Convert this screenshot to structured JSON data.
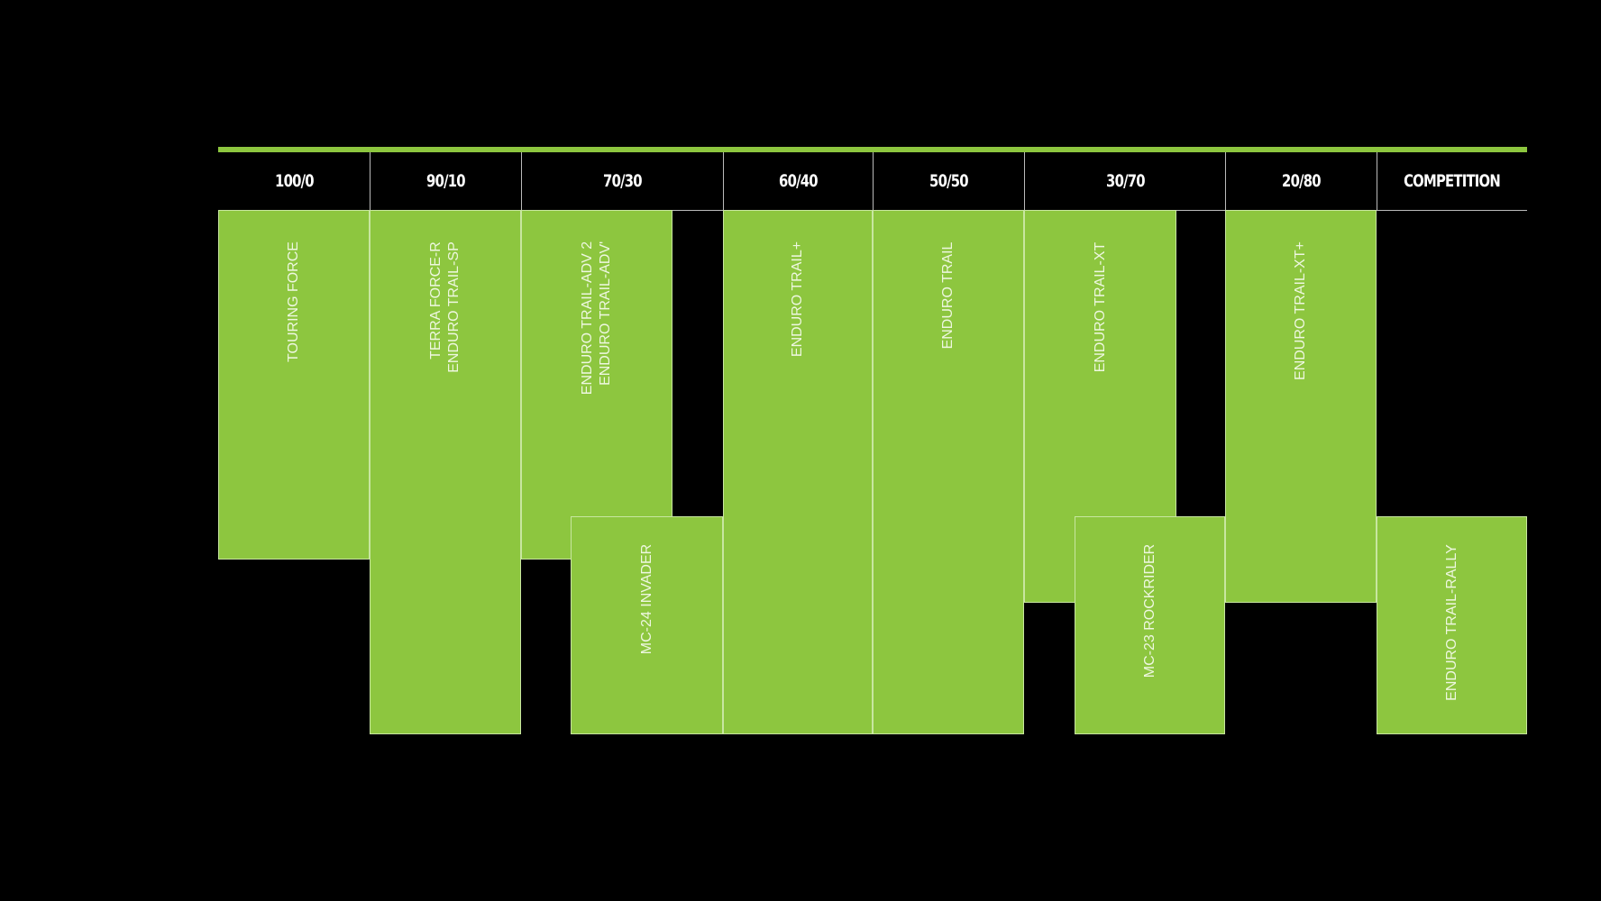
{
  "colors": {
    "background": "#000000",
    "accent_green": "#8dc63f",
    "text": "#ffffff"
  },
  "columns": [
    "100/0",
    "90/10",
    "70/30",
    "60/40",
    "50/50",
    "30/70",
    "20/80",
    "COMPETITION"
  ],
  "tires": [
    {
      "name": "TOURING FORCE",
      "column": "100/0"
    },
    {
      "name": "TERRA FORCE-R\nENDURO TRAIL-SP",
      "column": "90/10"
    },
    {
      "name": "ENDURO TRAIL-ADV 2\nENDURO TRAIL-ADV'",
      "column": "70/30"
    },
    {
      "name": "MC-24 INVADER",
      "column": "70/30"
    },
    {
      "name": "ENDURO TRAIL+",
      "column": "60/40"
    },
    {
      "name": "ENDURO TRAIL",
      "column": "50/50"
    },
    {
      "name": "ENDURO TRAIL-XT",
      "column": "30/70"
    },
    {
      "name": "MC-23 ROCKRIDER",
      "column": "30/70"
    },
    {
      "name": "ENDURO TRAIL-XT+",
      "column": "20/80"
    },
    {
      "name": "ENDURO TRAIL-RALLY",
      "column": "COMPETITION"
    }
  ]
}
